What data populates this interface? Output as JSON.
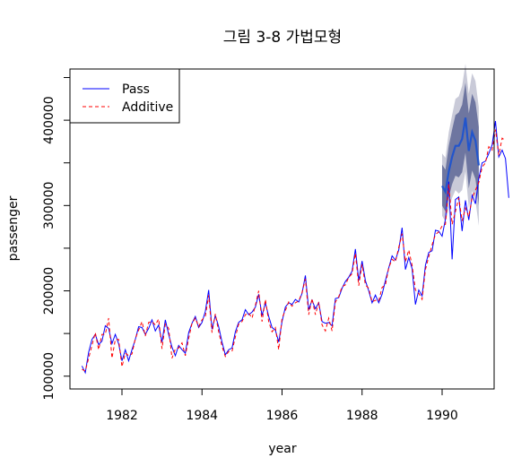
{
  "chart_data": {
    "type": "line",
    "title": "그림 3-8 가법모형",
    "xlabel": "year",
    "ylabel": "passenger",
    "xlim": [
      1980.7,
      1991.3
    ],
    "ylim": [
      85000,
      460000
    ],
    "x_ticks": [
      1982,
      1984,
      1986,
      1988,
      1990
    ],
    "x_tick_labels": [
      "1982",
      "1984",
      "1986",
      "1988",
      "1990"
    ],
    "y_ticks": [
      100000,
      150000,
      200000,
      250000,
      300000,
      350000,
      400000,
      450000
    ],
    "y_tick_labels": [
      "100000",
      "",
      "200000",
      "",
      "300000",
      "",
      "400000",
      ""
    ],
    "legend": {
      "position": "top-left",
      "entries": [
        "Pass",
        "Additive"
      ]
    },
    "series": [
      {
        "name": "Pass",
        "color": "#0000ff",
        "style": "solid",
        "start_year": 1981,
        "values": [
          112000,
          104000,
          128000,
          143000,
          149000,
          137000,
          141000,
          159000,
          156000,
          138000,
          149000,
          138000,
          118000,
          131000,
          118000,
          131000,
          143000,
          158000,
          157000,
          149000,
          156000,
          166000,
          153000,
          160000,
          140000,
          166000,
          149000,
          134000,
          124000,
          136000,
          131000,
          127000,
          151000,
          162000,
          170000,
          157000,
          163000,
          176000,
          201000,
          155000,
          171000,
          158000,
          140000,
          125000,
          131000,
          133000,
          152000,
          163000,
          166000,
          178000,
          172000,
          175000,
          181000,
          196000,
          171000,
          186000,
          170000,
          157000,
          154000,
          140000,
          164000,
          181000,
          186000,
          184000,
          190000,
          187000,
          197000,
          218000,
          178000,
          189000,
          179000,
          186000,
          164000,
          162000,
          163000,
          159000,
          191000,
          192000,
          203000,
          211000,
          216000,
          223000,
          249000,
          212000,
          235000,
          212000,
          200000,
          186000,
          195000,
          186000,
          196000,
          212000,
          227000,
          241000,
          236000,
          248000,
          274000,
          225000,
          239000,
          226000,
          184000,
          201000,
          194000,
          230000,
          245000,
          247000,
          271000,
          270000,
          264000,
          284000,
          328000,
          237000,
          307000,
          310000,
          270000,
          306000,
          283000,
          312000,
          302000,
          332000,
          350000,
          352000,
          361000,
          371000,
          399000,
          357000,
          365000,
          355000,
          309000
        ]
      },
      {
        "name": "Additive",
        "color": "#ff0000",
        "style": "dashed",
        "start_year": 1981,
        "values": [
          108000,
          106000,
          121000,
          136000,
          151000,
          131000,
          149000,
          149000,
          168000,
          121000,
          143000,
          143000,
          111000,
          127000,
          124000,
          126000,
          144000,
          154000,
          164000,
          147000,
          163000,
          164000,
          160000,
          167000,
          132000,
          161000,
          156000,
          121000,
          132000,
          133000,
          139000,
          124000,
          144000,
          162000,
          168000,
          158000,
          166000,
          170000,
          195000,
          151000,
          173000,
          152000,
          135000,
          123000,
          129000,
          129000,
          146000,
          161000,
          164000,
          172000,
          174000,
          168000,
          183000,
          200000,
          164000,
          190000,
          164000,
          152000,
          157000,
          131000,
          168000,
          177000,
          187000,
          182000,
          186000,
          188000,
          198000,
          214000,
          172000,
          191000,
          172000,
          187000,
          160000,
          153000,
          168000,
          153000,
          187000,
          193000,
          205000,
          207000,
          216000,
          220000,
          244000,
          206000,
          231000,
          207000,
          203000,
          187000,
          189000,
          188000,
          204000,
          207000,
          227000,
          237000,
          234000,
          251000,
          267000,
          234000,
          248000,
          230000,
          201000,
          197000,
          190000,
          225000,
          240000,
          254000,
          266000,
          269000,
          276000,
          278000,
          325000,
          278000,
          293000,
          309000,
          282000,
          297000,
          287000,
          309000,
          318000,
          327000,
          345000,
          350000,
          369000,
          365000,
          389000,
          359000,
          379000,
          376000
        ]
      },
      {
        "name": "forecast",
        "color": "#2255cc",
        "style": "solid",
        "start_year": 1990,
        "values": [
          323000,
          316000,
          340000,
          357000,
          370000,
          370000,
          378000,
          403000,
          364000,
          386000,
          376000,
          347000
        ],
        "lower_80": [
          300000,
          293000,
          310000,
          325000,
          335000,
          333000,
          339000,
          362000,
          320000,
          341000,
          331000,
          300000
        ],
        "upper_80": [
          348000,
          342000,
          370000,
          389000,
          406000,
          409000,
          418000,
          444000,
          408000,
          431000,
          421000,
          392000
        ],
        "lower_95": [
          288000,
          281000,
          296000,
          309000,
          318000,
          314000,
          318000,
          340000,
          297000,
          317000,
          306000,
          276000
        ],
        "upper_95": [
          361000,
          356000,
          386000,
          406000,
          425000,
          428000,
          440000,
          466000,
          431000,
          455000,
          446000,
          415000
        ],
        "band_80_color": "#6e76a0",
        "band_95_color": "#c9cad8"
      }
    ]
  }
}
